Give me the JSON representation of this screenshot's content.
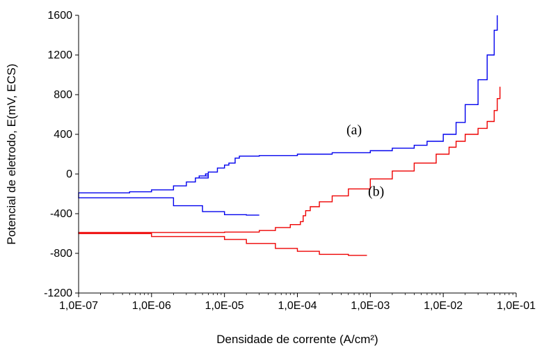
{
  "chart_data": {
    "type": "line",
    "xlabel": "Densidade de corrente (A/cm²)",
    "ylabel": "Potencial de eletrodo, E(mV, ECS)",
    "xscale": "log",
    "xlim": [
      1e-07,
      0.1
    ],
    "ylim": [
      -1200,
      1600
    ],
    "x_tick_values": [
      1e-07,
      1e-06,
      1e-05,
      0.0001,
      0.001,
      0.01,
      0.1
    ],
    "x_tick_labels": [
      "1,0E-07",
      "1,0E-06",
      "1,0E-05",
      "1,0E-04",
      "1,0E-03",
      "1,0E-02",
      "1,0E-01"
    ],
    "y_ticks": [
      -1200,
      -800,
      -400,
      0,
      400,
      800,
      1200,
      1600
    ],
    "y_tick_labels": [
      "-1200",
      "-800",
      "-400",
      "0",
      "400",
      "800",
      "1200",
      "1600"
    ],
    "grid": false,
    "legend": "none",
    "series": [
      {
        "label": "(a)",
        "color": "#0000ee",
        "x": [
          3e-05,
          2e-05,
          1e-05,
          5e-06,
          2e-06,
          1e-07,
          1e-07,
          5e-07,
          1e-06,
          2e-06,
          3e-06,
          4e-06,
          4.5e-06,
          5.5e-06,
          6e-06,
          4.5e-06,
          6e-06,
          8e-06,
          1e-05,
          1.15e-05,
          1.4e-05,
          1.6e-05,
          3e-05,
          0.0001,
          0.0003,
          0.001,
          0.002,
          0.004,
          0.006,
          0.01,
          0.015,
          0.02,
          0.03,
          0.04,
          0.05,
          0.055
        ],
        "y": [
          -415,
          -410,
          -380,
          -320,
          -240,
          -210,
          -190,
          -180,
          -160,
          -120,
          -80,
          -40,
          -20,
          0,
          -20,
          -40,
          20,
          60,
          90,
          110,
          160,
          180,
          185,
          200,
          215,
          235,
          260,
          290,
          330,
          400,
          520,
          700,
          950,
          1200,
          1450,
          1600
        ]
      },
      {
        "label": "(b)",
        "color": "#ee0000",
        "x": [
          0.0009,
          0.0005,
          0.0002,
          0.0001,
          5e-05,
          2e-05,
          1e-05,
          1e-06,
          1e-07,
          1e-07,
          1e-06,
          1e-05,
          3e-05,
          5e-05,
          8e-05,
          0.00011,
          0.00012,
          0.00013,
          0.00015,
          0.0002,
          0.0003,
          0.0005,
          0.001,
          0.002,
          0.004,
          0.008,
          0.012,
          0.015,
          0.02,
          0.03,
          0.04,
          0.05,
          0.055,
          0.06
        ],
        "y": [
          -820,
          -810,
          -780,
          -750,
          -700,
          -660,
          -630,
          -600,
          -600,
          -590,
          -590,
          -585,
          -570,
          -540,
          -510,
          -480,
          -420,
          -370,
          -330,
          -280,
          -220,
          -150,
          -50,
          30,
          110,
          200,
          270,
          330,
          400,
          460,
          530,
          640,
          760,
          880
        ]
      }
    ],
    "annotations": [
      {
        "text": "(a)",
        "x": 0.0006,
        "y": 400
      },
      {
        "text": "(b)",
        "x": 0.0012,
        "y": -220
      }
    ]
  }
}
